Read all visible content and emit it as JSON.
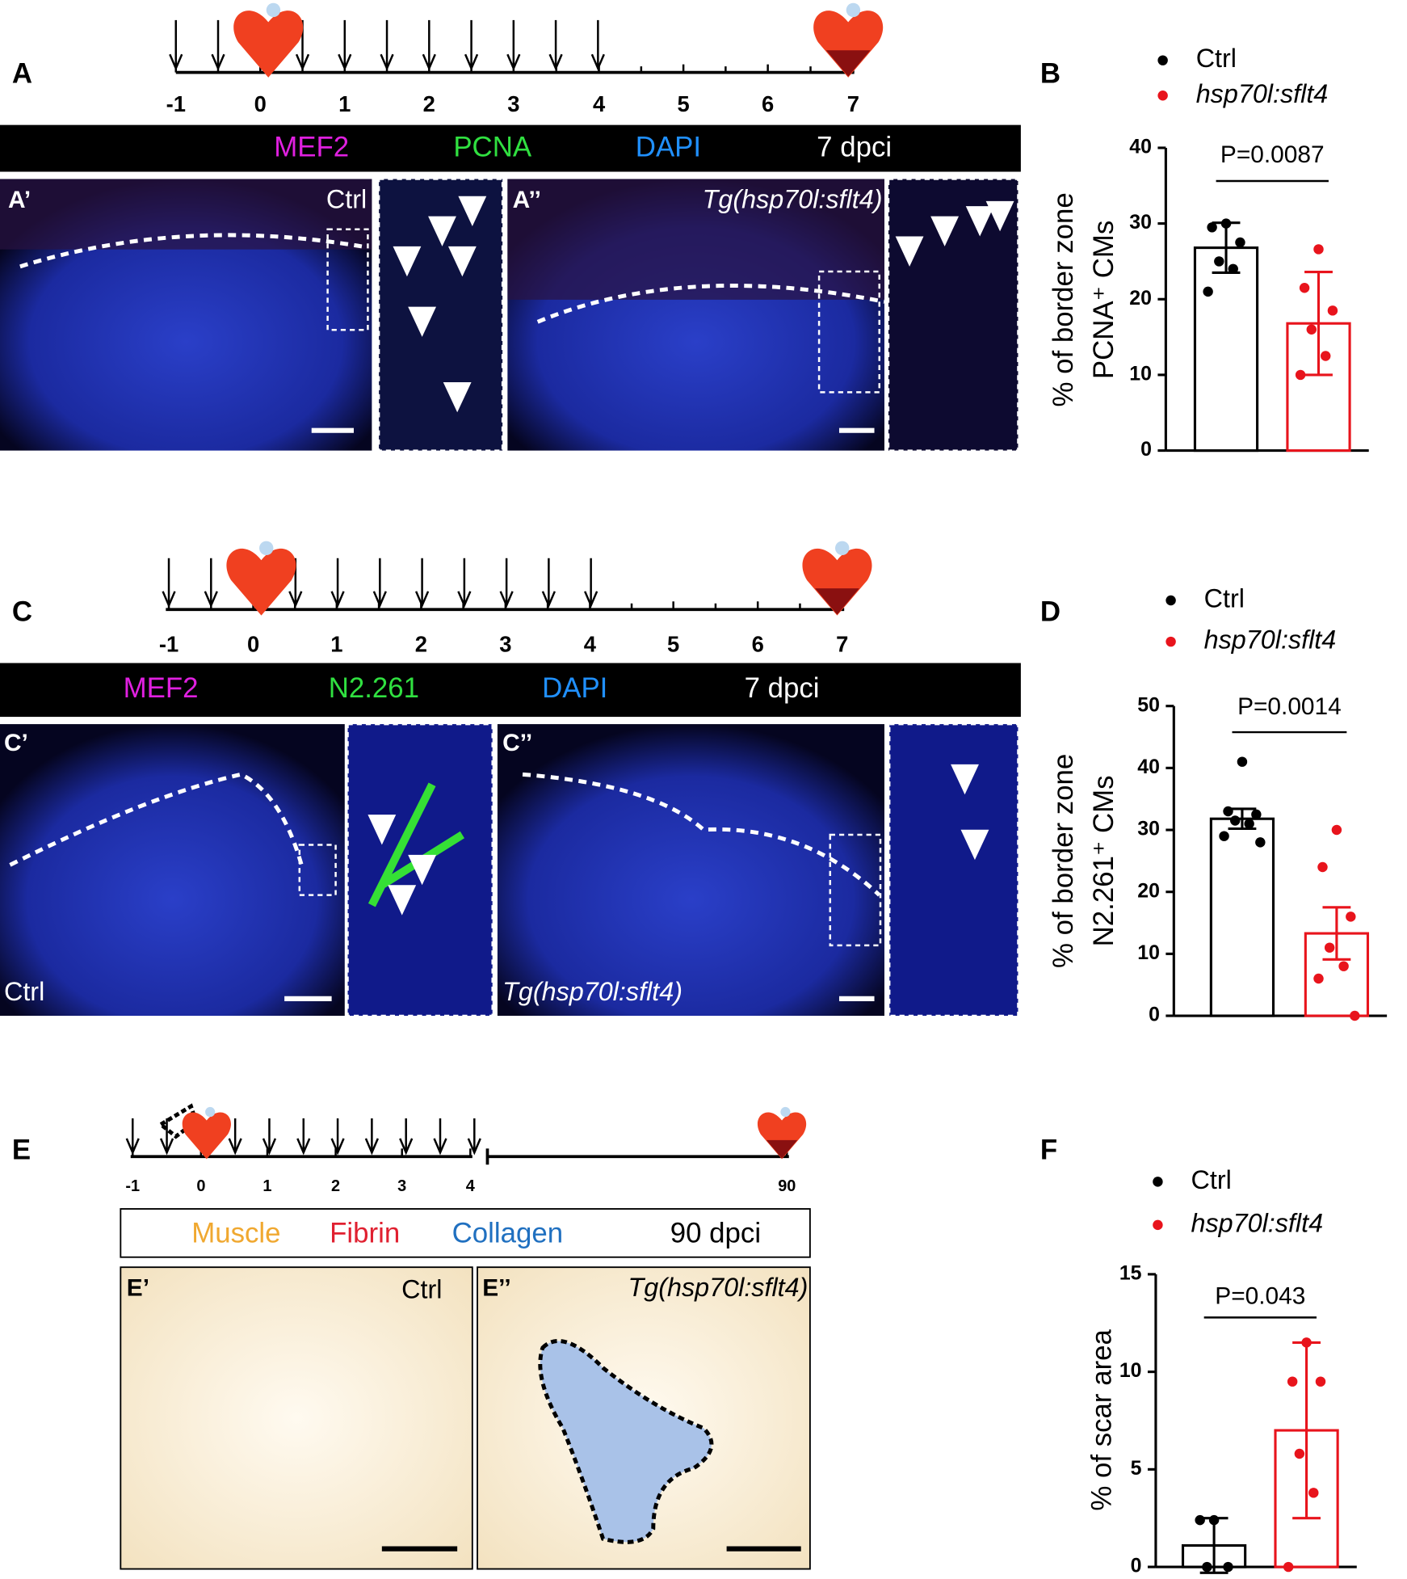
{
  "panel_labels": [
    "A",
    "B",
    "C",
    "D",
    "E",
    "F"
  ],
  "timelines": [
    {
      "ticks": [
        -1,
        0,
        1,
        2,
        3,
        4,
        5,
        6,
        7
      ]
    },
    {
      "ticks": [
        -1,
        0,
        1,
        2,
        3,
        4,
        5,
        6,
        7
      ]
    },
    {
      "ticks": [
        -1,
        0,
        1,
        2,
        3,
        4,
        90
      ]
    }
  ],
  "stain_bars": [
    {
      "labels": [
        "MEF2",
        "PCNA",
        "DAPI",
        "7 dpci"
      ]
    },
    {
      "labels": [
        "MEF2",
        "N2.261",
        "DAPI",
        "7 dpci"
      ]
    },
    {
      "labels": [
        "Muscle",
        "Fibrin",
        "Collagen",
        "90 dpci"
      ]
    }
  ],
  "image_labels": [
    {
      "panel": "A’",
      "group": "Ctrl"
    },
    {
      "panel": "A’’",
      "group": "Tg(hsp70l:sflt4)"
    },
    {
      "panel": "C’",
      "group": "Ctrl"
    },
    {
      "panel": "C’’",
      "group": "Tg(hsp70l:sflt4)"
    },
    {
      "panel": "E’",
      "group": "Ctrl"
    },
    {
      "panel": "E’’",
      "group": "Tg(hsp70l:sflt4)"
    }
  ],
  "chart_data": [
    {
      "type": "bar",
      "ylabel": [
        "% of border zone",
        "PCNA⁺ CMs"
      ],
      "annotation": "P=0.0087",
      "ylim": [
        0,
        40
      ],
      "yticks": [
        0,
        10,
        20,
        30,
        40
      ],
      "series": [
        {
          "name": "Ctrl",
          "color": "#000000",
          "mean": 26.8,
          "error": 3.3,
          "points": [
            30,
            29.5,
            27.5,
            25,
            24,
            21
          ]
        },
        {
          "name": "hsp70l:sflt4",
          "color": "#e8141c",
          "mean": 16.8,
          "error": 6.8,
          "points": [
            26.6,
            21.5,
            18.5,
            16,
            12.5,
            10
          ]
        }
      ]
    },
    {
      "type": "bar",
      "ylabel": [
        "% of border zone",
        "N2.261⁺ CMs"
      ],
      "annotation": "P=0.0014",
      "ylim": [
        0,
        50
      ],
      "yticks": [
        0,
        10,
        20,
        30,
        40,
        50
      ],
      "series": [
        {
          "name": "Ctrl",
          "color": "#000000",
          "mean": 31.8,
          "error": 1.6,
          "points": [
            41,
            33,
            32.5,
            31.5,
            31,
            29,
            28
          ]
        },
        {
          "name": "hsp70l:sflt4",
          "color": "#e8141c",
          "mean": 13.3,
          "error": 4.2,
          "points": [
            30,
            24,
            16,
            11,
            8,
            6,
            0
          ]
        }
      ]
    },
    {
      "type": "bar",
      "ylabel": [
        "% of scar area"
      ],
      "annotation": "P=0.043",
      "ylim": [
        0,
        15
      ],
      "yticks": [
        0,
        5,
        10,
        15
      ],
      "series": [
        {
          "name": "Ctrl",
          "color": "#000000",
          "mean": 1.1,
          "error": 1.4,
          "points": [
            2.4,
            2.4,
            0,
            0
          ]
        },
        {
          "name": "hsp70l:sflt4",
          "color": "#e8141c",
          "mean": 7.0,
          "error": 4.5,
          "points": [
            11.5,
            9.5,
            9.5,
            5.8,
            3.8,
            0
          ]
        }
      ]
    }
  ]
}
